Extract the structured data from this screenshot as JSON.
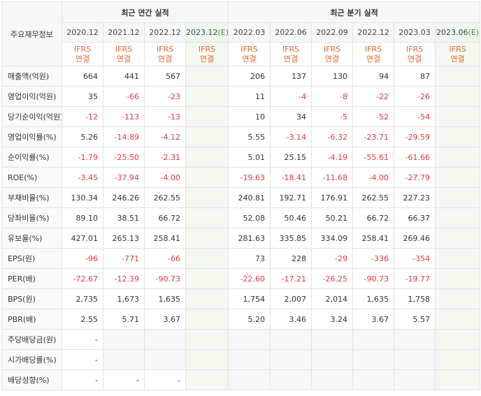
{
  "header": {
    "corner_label": "주요재무정보",
    "annual_group": "최근 연간 실적",
    "quarter_group": "최근 분기 실적",
    "est_marker": "(E)"
  },
  "periods": {
    "annual": [
      "2020.12",
      "2021.12",
      "2022.12",
      "2023.12"
    ],
    "quarter": [
      "2022.03",
      "2022.06",
      "2022.09",
      "2022.12",
      "2023.03",
      "2023.06"
    ]
  },
  "ifrs_line1": "IFRS",
  "ifrs_line2": "연결",
  "rows": [
    {
      "label": "매출액(억원)",
      "values": [
        "664",
        "441",
        "567",
        "",
        "206",
        "137",
        "130",
        "94",
        "87",
        ""
      ]
    },
    {
      "label": "영업이익(억원)",
      "values": [
        "35",
        "-66",
        "-23",
        "",
        "11",
        "-4",
        "-8",
        "-22",
        "-26",
        ""
      ]
    },
    {
      "label": "당기순이익(억원)",
      "values": [
        "-12",
        "-113",
        "-13",
        "",
        "10",
        "34",
        "-5",
        "-52",
        "-54",
        ""
      ]
    },
    {
      "label": "영업이익률(%)",
      "values": [
        "5.26",
        "-14.89",
        "-4.12",
        "",
        "5.55",
        "-3.14",
        "-6.32",
        "-23.71",
        "-29.59",
        ""
      ]
    },
    {
      "label": "순이익률(%)",
      "values": [
        "-1.79",
        "-25.50",
        "-2.31",
        "",
        "5.01",
        "25.15",
        "-4.19",
        "-55.61",
        "-61.66",
        ""
      ]
    },
    {
      "label": "ROE(%)",
      "values": [
        "-3.45",
        "-37.94",
        "-4.00",
        "",
        "-19.63",
        "-18.41",
        "-11.68",
        "-4.00",
        "-27.79",
        ""
      ]
    },
    {
      "label": "부채비율(%)",
      "values": [
        "130.34",
        "246.26",
        "262.55",
        "",
        "240.81",
        "192.71",
        "176.91",
        "262.55",
        "227.23",
        ""
      ]
    },
    {
      "label": "당좌비율(%)",
      "values": [
        "89.10",
        "38.51",
        "66.72",
        "",
        "52.08",
        "50.46",
        "50.21",
        "66.72",
        "66.37",
        ""
      ]
    },
    {
      "label": "유보율(%)",
      "values": [
        "427.01",
        "265.13",
        "258.41",
        "",
        "281.63",
        "335.85",
        "334.09",
        "258.41",
        "269.46",
        ""
      ]
    },
    {
      "label": "EPS(원)",
      "values": [
        "-96",
        "-771",
        "-66",
        "",
        "73",
        "228",
        "-29",
        "-336",
        "-354",
        ""
      ]
    },
    {
      "label": "PER(배)",
      "values": [
        "-72.67",
        "-12.39",
        "-90.73",
        "",
        "-22.60",
        "-17.21",
        "-26.25",
        "-90.73",
        "-19.77",
        ""
      ]
    },
    {
      "label": "BPS(원)",
      "values": [
        "2,735",
        "1,673",
        "1,635",
        "",
        "1,754",
        "2,007",
        "2,014",
        "1,635",
        "1,758",
        ""
      ]
    },
    {
      "label": "PBR(배)",
      "values": [
        "2.55",
        "5.71",
        "3.67",
        "",
        "5.20",
        "3.46",
        "3.24",
        "3.67",
        "5.57",
        ""
      ]
    },
    {
      "label": "주당배당금(원)",
      "values": [
        "-",
        "",
        "",
        "",
        "",
        "",
        "",
        "",
        "",
        ""
      ]
    },
    {
      "label": "시가배당률(%)",
      "values": [
        "-",
        "",
        "",
        "",
        "",
        "",
        "",
        "",
        "",
        ""
      ]
    },
    {
      "label": "배당성향(%)",
      "values": [
        "-",
        "-",
        "-",
        "",
        "",
        "",
        "",
        "",
        "",
        ""
      ]
    }
  ],
  "colors": {
    "negative": "#e03a3a",
    "ifrs_text": "#e8652b",
    "estimate_marker": "#3a9a3a",
    "estimate_bg": "#f3f8f1",
    "header_bg": "#f6f7f9"
  }
}
